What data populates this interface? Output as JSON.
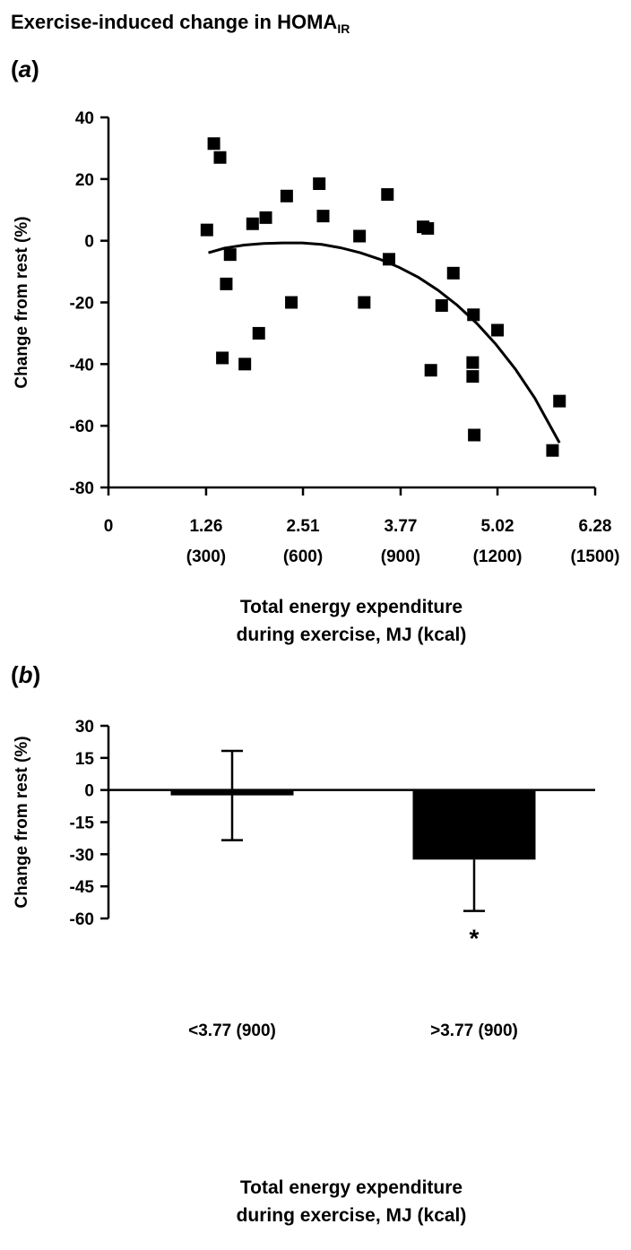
{
  "figure": {
    "title_main": "Exercise-induced change in HOMA",
    "title_sub": "IR",
    "panel_a_open": "(",
    "panel_a_letter": "a",
    "panel_a_close": ")",
    "panel_b_open": "(",
    "panel_b_letter": "b",
    "panel_b_close": ")"
  },
  "chart_data": [
    {
      "type": "scatter",
      "panel": "a",
      "ylabel": "Change from rest (%)",
      "xlabel_lines": [
        "Total energy expenditure",
        "during exercise, MJ (kcal)"
      ],
      "xlim": [
        0,
        6.28
      ],
      "ylim": [
        -80,
        40
      ],
      "xticks": [
        {
          "value": 0,
          "label": "0",
          "label2": ""
        },
        {
          "value": 1.26,
          "label": "1.26",
          "label2": "(300)"
        },
        {
          "value": 2.51,
          "label": "2.51",
          "label2": "(600)"
        },
        {
          "value": 3.77,
          "label": "3.77",
          "label2": "(900)"
        },
        {
          "value": 5.02,
          "label": "5.02",
          "label2": "(1200)"
        },
        {
          "value": 6.28,
          "label": "6.28",
          "label2": "(1500)"
        }
      ],
      "yticks": [
        40,
        20,
        0,
        -20,
        -40,
        -60,
        -80
      ],
      "points": [
        {
          "x": 1.27,
          "y": 3.5
        },
        {
          "x": 1.36,
          "y": 31.5
        },
        {
          "x": 1.44,
          "y": 27
        },
        {
          "x": 1.47,
          "y": -38
        },
        {
          "x": 1.52,
          "y": -14
        },
        {
          "x": 1.57,
          "y": -4.5
        },
        {
          "x": 1.76,
          "y": -40
        },
        {
          "x": 1.86,
          "y": 5.5
        },
        {
          "x": 1.94,
          "y": -30
        },
        {
          "x": 2.03,
          "y": 7.5
        },
        {
          "x": 2.3,
          "y": 14.5
        },
        {
          "x": 2.36,
          "y": -20
        },
        {
          "x": 2.72,
          "y": 18.5
        },
        {
          "x": 2.77,
          "y": 8
        },
        {
          "x": 3.24,
          "y": 1.5
        },
        {
          "x": 3.3,
          "y": -20
        },
        {
          "x": 3.6,
          "y": 15
        },
        {
          "x": 3.62,
          "y": -6
        },
        {
          "x": 4.06,
          "y": 4.5
        },
        {
          "x": 4.12,
          "y": 4
        },
        {
          "x": 4.16,
          "y": -42
        },
        {
          "x": 4.3,
          "y": -21
        },
        {
          "x": 4.45,
          "y": -10.5
        },
        {
          "x": 4.71,
          "y": -24
        },
        {
          "x": 4.7,
          "y": -39.5
        },
        {
          "x": 4.7,
          "y": -44
        },
        {
          "x": 4.72,
          "y": -63
        },
        {
          "x": 5.02,
          "y": -29
        },
        {
          "x": 5.73,
          "y": -68
        },
        {
          "x": 5.82,
          "y": -52
        }
      ],
      "fit_curve": [
        {
          "x": 1.29,
          "y": -3.9
        },
        {
          "x": 1.5,
          "y": -2.4
        },
        {
          "x": 1.75,
          "y": -1.4
        },
        {
          "x": 2.0,
          "y": -0.9
        },
        {
          "x": 2.25,
          "y": -0.7
        },
        {
          "x": 2.5,
          "y": -0.7
        },
        {
          "x": 2.75,
          "y": -1.2
        },
        {
          "x": 3.0,
          "y": -2.3
        },
        {
          "x": 3.25,
          "y": -3.9
        },
        {
          "x": 3.5,
          "y": -6.0
        },
        {
          "x": 3.75,
          "y": -8.6
        },
        {
          "x": 4.0,
          "y": -11.9
        },
        {
          "x": 4.25,
          "y": -16.0
        },
        {
          "x": 4.5,
          "y": -20.9
        },
        {
          "x": 4.75,
          "y": -26.7
        },
        {
          "x": 5.0,
          "y": -33.6
        },
        {
          "x": 5.25,
          "y": -41.6
        },
        {
          "x": 5.5,
          "y": -51.0
        },
        {
          "x": 5.82,
          "y": -65.5
        }
      ]
    },
    {
      "type": "bar",
      "panel": "b",
      "ylabel": "Change from rest (%)",
      "xlabel_lines": [
        "Total energy expenditure",
        "during exercise, MJ (kcal)"
      ],
      "ylim": [
        -60,
        30
      ],
      "yticks": [
        30,
        15,
        0,
        -15,
        -30,
        -45,
        -60
      ],
      "categories": [
        "<3.77 (900)",
        ">3.77 (900)"
      ],
      "values": [
        -2.5,
        -32.5
      ],
      "error_upper": [
        18.3,
        -32.5
      ],
      "error_lower": [
        -23.4,
        -56.5
      ],
      "annotations": [
        {
          "category_index": 1,
          "text": "*"
        }
      ],
      "bar_color": "#000000"
    }
  ]
}
